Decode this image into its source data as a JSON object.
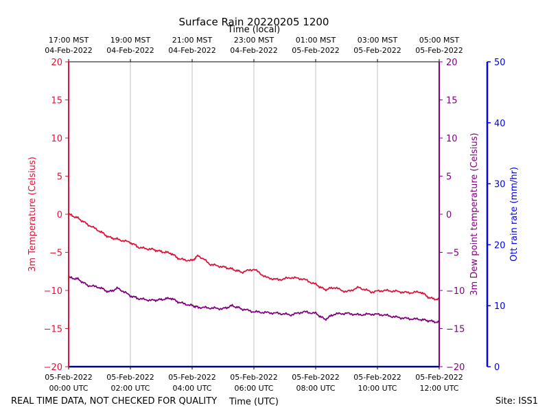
{
  "chart_data": {
    "type": "line",
    "title": "Surface Rain 20220205 1200",
    "top_axis_label": "Time (local)",
    "xlabel": "Time (UTC)",
    "ylabel_left": "3m Temperature (Celsius)",
    "ylabel_right": "3m Dew point temperature (Celsius)",
    "ylabel_far_right": "Ott rain rate (mm/hr)",
    "footer_left": "REAL TIME DATA, NOT CHECKED FOR QUALITY",
    "footer_right": "Site: ISS1",
    "xlim_hours": [
      0,
      12
    ],
    "ylim_temp": [
      -20,
      20
    ],
    "ylim_rain": [
      0,
      50
    ],
    "grid": true,
    "temp_ticks": [
      "20",
      "15",
      "10",
      "5",
      "0",
      "−5",
      "−10",
      "−15",
      "−20"
    ],
    "temp_tick_values": [
      20,
      15,
      10,
      5,
      0,
      -5,
      -10,
      -15,
      -20
    ],
    "rain_ticks": [
      "50",
      "40",
      "30",
      "20",
      "10",
      "0"
    ],
    "rain_tick_values": [
      50,
      40,
      30,
      20,
      10,
      0
    ],
    "x_tick_hours": [
      0,
      2,
      4,
      6,
      8,
      10,
      12
    ],
    "x_ticks_utc": [
      {
        "date": "05-Feb-2022",
        "time": "00:00 UTC"
      },
      {
        "date": "05-Feb-2022",
        "time": "02:00 UTC"
      },
      {
        "date": "05-Feb-2022",
        "time": "04:00 UTC"
      },
      {
        "date": "05-Feb-2022",
        "time": "06:00 UTC"
      },
      {
        "date": "05-Feb-2022",
        "time": "08:00 UTC"
      },
      {
        "date": "05-Feb-2022",
        "time": "10:00 UTC"
      },
      {
        "date": "05-Feb-2022",
        "time": "12:00 UTC"
      }
    ],
    "x_ticks_local": [
      {
        "time": "17:00 MST",
        "date": "04-Feb-2022"
      },
      {
        "time": "19:00 MST",
        "date": "04-Feb-2022"
      },
      {
        "time": "21:00 MST",
        "date": "04-Feb-2022"
      },
      {
        "time": "23:00 MST",
        "date": "04-Feb-2022"
      },
      {
        "time": "01:00 MST",
        "date": "05-Feb-2022"
      },
      {
        "time": "03:00 MST",
        "date": "05-Feb-2022"
      },
      {
        "time": "05:00 MST",
        "date": "05-Feb-2022"
      }
    ],
    "colors": {
      "temperature": "#dc143c",
      "dewpoint": "#800080",
      "rain": "#0000ee",
      "grid": "#b0b0b0"
    },
    "series": [
      {
        "name": "3m Temperature",
        "x": [
          0,
          0.3,
          0.6,
          1.0,
          1.3,
          1.6,
          2.0,
          2.3,
          2.7,
          3.0,
          3.3,
          3.6,
          4.0,
          4.2,
          4.6,
          5.0,
          5.3,
          5.6,
          6.0,
          6.4,
          6.8,
          7.2,
          7.6,
          8.0,
          8.3,
          8.6,
          9.0,
          9.4,
          9.8,
          10.2,
          10.6,
          11.0,
          11.4,
          11.7,
          12.0
        ],
        "values": [
          0.0,
          -0.5,
          -1.3,
          -2.2,
          -3.0,
          -3.3,
          -3.7,
          -4.4,
          -4.6,
          -4.9,
          -5.1,
          -5.9,
          -6.1,
          -5.4,
          -6.6,
          -6.9,
          -7.2,
          -7.6,
          -7.2,
          -8.3,
          -8.6,
          -8.3,
          -8.5,
          -9.2,
          -9.9,
          -9.6,
          -10.2,
          -9.6,
          -10.2,
          -10.0,
          -10.1,
          -10.3,
          -10.2,
          -11.0,
          -11.2
        ]
      },
      {
        "name": "3m Dew point temperature",
        "x": [
          0,
          0.3,
          0.6,
          1.0,
          1.3,
          1.6,
          2.0,
          2.3,
          2.7,
          3.0,
          3.3,
          3.6,
          4.0,
          4.2,
          4.6,
          5.0,
          5.3,
          5.6,
          6.0,
          6.4,
          6.8,
          7.2,
          7.6,
          8.0,
          8.3,
          8.6,
          9.0,
          9.4,
          9.8,
          10.2,
          10.6,
          11.0,
          11.4,
          11.7,
          12.0
        ],
        "values": [
          -8.3,
          -8.5,
          -9.3,
          -9.6,
          -10.2,
          -9.7,
          -10.7,
          -11.1,
          -11.3,
          -11.2,
          -11.0,
          -11.6,
          -12.0,
          -12.2,
          -12.3,
          -12.4,
          -12.0,
          -12.4,
          -12.8,
          -12.9,
          -13.0,
          -13.2,
          -12.8,
          -13.0,
          -13.8,
          -13.1,
          -13.0,
          -13.2,
          -13.1,
          -13.2,
          -13.5,
          -13.7,
          -13.8,
          -14.0,
          -14.2
        ]
      },
      {
        "name": "Ott rain rate",
        "x": [
          0,
          12
        ],
        "values": [
          0,
          0
        ]
      }
    ]
  }
}
